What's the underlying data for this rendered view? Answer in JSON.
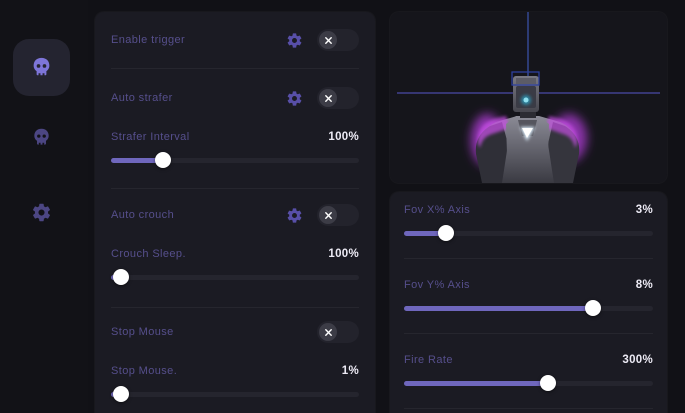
{
  "colors": {
    "background": "#111116",
    "card": "#1b1b23",
    "accent": "#6f67bd",
    "label": "#564f8c",
    "value": "#edebf5",
    "gear_icon": "#584fa8",
    "toggle_track": "#23232c",
    "toggle_knob": "#3c3c46",
    "slider_track": "#25252e",
    "slider_thumb": "#ffffff",
    "crosshair": "#4050ac",
    "magenta_glow": "#b43ddb",
    "sidebar_active_bg": "#242430",
    "sidebar_icon_active": "#7d75d8",
    "sidebar_icon_dim": "#4c4683"
  },
  "sidebar": {
    "items": [
      {
        "id": "skull-primary",
        "icon": "skull-icon",
        "active": true
      },
      {
        "id": "skull-secondary",
        "icon": "skull-icon",
        "active": false
      },
      {
        "id": "settings",
        "icon": "gear-icon",
        "active": false
      }
    ]
  },
  "left_panel": {
    "rows": [
      {
        "type": "toggle",
        "label": "Enable trigger",
        "has_gear": true,
        "state": "off"
      },
      {
        "type": "toggle",
        "label": "Auto strafer",
        "has_gear": true,
        "state": "off"
      },
      {
        "type": "slider",
        "label": "Strafer Interval",
        "value": "100%",
        "percent": 21
      },
      {
        "type": "toggle",
        "label": "Auto crouch",
        "has_gear": true,
        "state": "off"
      },
      {
        "type": "slider",
        "label": "Crouch Sleep.",
        "value": "100%",
        "percent": 4
      },
      {
        "type": "toggle",
        "label": "Stop Mouse",
        "has_gear": false,
        "state": "off"
      },
      {
        "type": "slider",
        "label": "Stop Mouse.",
        "value": "1%",
        "percent": 4
      }
    ]
  },
  "right_panel": {
    "preview": {
      "content": "robot-model-with-crosshair"
    },
    "sliders": [
      {
        "label": "Fov X% Axis",
        "value": "3%",
        "percent": 17
      },
      {
        "label": "Fov Y% Axis",
        "value": "8%",
        "percent": 76
      },
      {
        "label": "Fire Rate",
        "value": "300%",
        "percent": 58
      }
    ]
  }
}
